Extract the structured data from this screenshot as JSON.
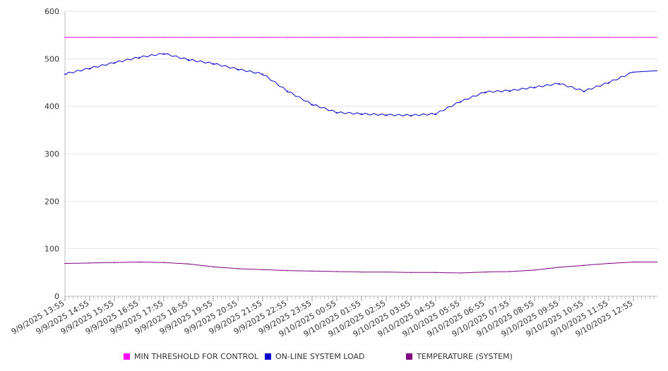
{
  "chart_data": {
    "type": "line",
    "title": "",
    "xlabel": "",
    "ylabel": "",
    "ylim": [
      0,
      600
    ],
    "y_ticks": [
      0,
      100,
      200,
      300,
      400,
      500,
      600
    ],
    "grid": "horizontal",
    "legend_placement": "bottom",
    "x_tick_labels": [
      "9/9/2025 13:55",
      "9/9/2025 14:55",
      "9/9/2025 15:55",
      "9/9/2025 16:55",
      "9/9/2025 17:55",
      "9/9/2025 18:55",
      "9/9/2025 19:55",
      "9/9/2025 20:55",
      "9/9/2025 21:55",
      "9/9/2025 22:55",
      "9/9/2025 23:55",
      "9/10/2025 00:55",
      "9/10/2025 01:55",
      "9/10/2025 02:55",
      "9/10/2025 03:55",
      "9/10/2025 04:55",
      "9/10/2025 05:55",
      "9/10/2025 06:55",
      "9/10/2025 07:55",
      "9/10/2025 08:55",
      "9/10/2025 09:55",
      "9/10/2025 10:55",
      "9/10/2025 11:55",
      "9/10/2025 12:55"
    ],
    "series": [
      {
        "name": "MIN THRESHOLD FOR CONTROL",
        "color": "#ff00ff",
        "values": [
          545,
          545,
          545,
          545,
          545,
          545,
          545,
          545,
          545,
          545,
          545,
          545,
          545,
          545,
          545,
          545,
          545,
          545,
          545,
          545,
          545,
          545,
          545,
          545
        ]
      },
      {
        "name": "ON-LINE SYSTEM LOAD",
        "color": "#0000cc",
        "values": [
          468,
          480,
          492,
          503,
          511,
          498,
          490,
          478,
          468,
          432,
          404,
          387,
          384,
          382,
          381,
          384,
          410,
          430,
          433,
          440,
          448,
          432,
          450,
          472
        ]
      },
      {
        "name": "TEMPERATURE (SYSTEM)",
        "color": "#800080",
        "values": [
          69,
          70,
          71,
          72,
          71,
          68,
          62,
          58,
          56,
          54,
          53,
          52,
          51,
          51,
          50,
          50,
          49,
          51,
          52,
          55,
          61,
          65,
          69,
          72
        ]
      }
    ]
  }
}
